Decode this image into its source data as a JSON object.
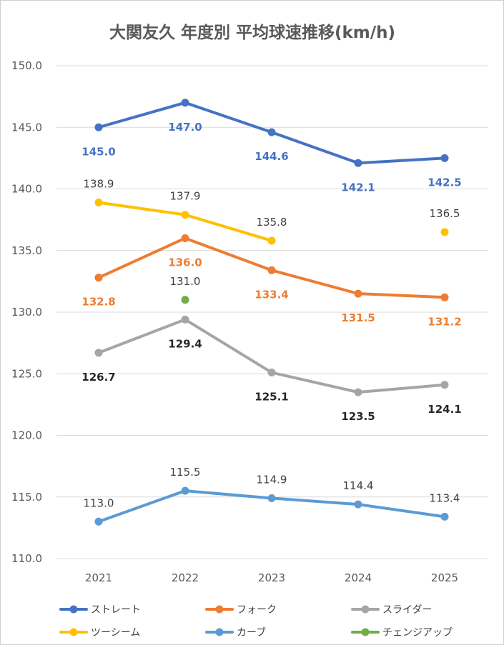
{
  "chart_data": {
    "type": "line",
    "title": "大関友久 年度別 平均球速推移(km/h)",
    "xlabel": "",
    "ylabel": "",
    "categories": [
      "2021",
      "2022",
      "2023",
      "2024",
      "2025"
    ],
    "ylim": [
      110,
      150
    ],
    "yticks": [
      "110.0",
      "115.0",
      "120.0",
      "125.0",
      "130.0",
      "135.0",
      "140.0",
      "145.0",
      "150.0"
    ],
    "grid": true,
    "legend_position": "bottom",
    "series": [
      {
        "name": "ストレート",
        "color": "#4472c4",
        "values": [
          145.0,
          147.0,
          144.6,
          142.1,
          142.5
        ],
        "labels": [
          "145.0",
          "147.0",
          "144.6",
          "142.1",
          "142.5"
        ],
        "label_color": "#4472c4",
        "label_bold": true,
        "label_pos": "below"
      },
      {
        "name": "フォーク",
        "color": "#ed7d31",
        "values": [
          132.8,
          136.0,
          133.4,
          131.5,
          131.2
        ],
        "labels": [
          "132.8",
          "136.0",
          "133.4",
          "131.5",
          "131.2"
        ],
        "label_color": "#ed7d31",
        "label_bold": true,
        "label_pos": "below"
      },
      {
        "name": "スライダー",
        "color": "#a5a5a5",
        "values": [
          126.7,
          129.4,
          125.1,
          123.5,
          124.1
        ],
        "labels": [
          "126.7",
          "129.4",
          "125.1",
          "123.5",
          "124.1"
        ],
        "label_color": "#262626",
        "label_bold": true,
        "label_pos": "below"
      },
      {
        "name": "ツーシーム",
        "color": "#ffc000",
        "values": [
          138.9,
          137.9,
          135.8,
          null,
          136.5
        ],
        "labels": [
          "138.9",
          "137.9",
          "135.8",
          "",
          "136.5"
        ],
        "label_color": "#404040",
        "label_bold": false,
        "label_pos": "above"
      },
      {
        "name": "カーブ",
        "color": "#5b9bd5",
        "values": [
          113.0,
          115.5,
          114.9,
          114.4,
          113.4
        ],
        "labels": [
          "113.0",
          "115.5",
          "114.9",
          "114.4",
          "113.4"
        ],
        "label_color": "#404040",
        "label_bold": false,
        "label_pos": "above"
      },
      {
        "name": "チェンジアップ",
        "color": "#70ad47",
        "values": [
          null,
          131.0,
          null,
          null,
          null
        ],
        "labels": [
          "",
          "131.0",
          "",
          "",
          ""
        ],
        "label_color": "#404040",
        "label_bold": false,
        "label_pos": "above"
      }
    ]
  }
}
